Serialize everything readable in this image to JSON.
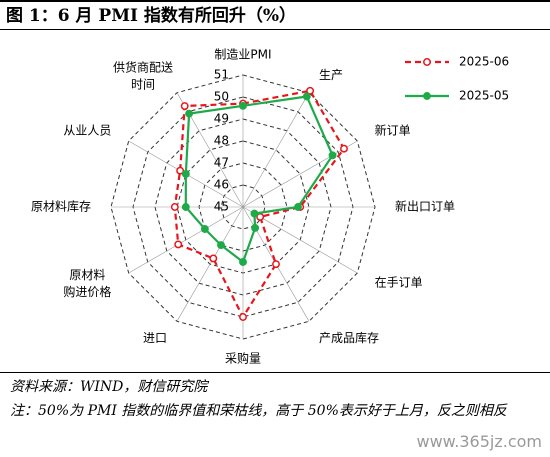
{
  "chart_data": {
    "type": "radar",
    "title": "图 1：6 月 PMI 指数有所回升（%）",
    "categories": [
      "制造业PMI",
      "生产",
      "新订单",
      "新出口订单",
      "在手订单",
      "产成品库存",
      "采购量",
      "进口",
      "原材料购进价格",
      "原材料库存",
      "从业人员",
      "供货商配送时间"
    ],
    "series": [
      {
        "name": "2025-06",
        "color": "#e8151b",
        "values": [
          49.7,
          51.1,
          50.3,
          47.6,
          45.9,
          48.0,
          50.0,
          47.7,
          48.4,
          48.1,
          48.3,
          50.3
        ]
      },
      {
        "name": "2025-05",
        "color": "#1faa4a",
        "values": [
          49.6,
          50.8,
          49.7,
          47.5,
          45.6,
          46.1,
          47.5,
          47.0,
          47.0,
          47.6,
          48.0,
          49.9
        ]
      }
    ],
    "ylim": [
      45,
      51
    ],
    "yticks": [
      45,
      46,
      47,
      48,
      49,
      50,
      51
    ],
    "grid": true,
    "legend": "top-right"
  },
  "source": "资料来源：WIND，财信研究院",
  "note": "注：50%为 PMI 指数的临界值和荣枯线，高于 50%表示好于上月，反之则相反",
  "watermark": "www.365jz.com"
}
